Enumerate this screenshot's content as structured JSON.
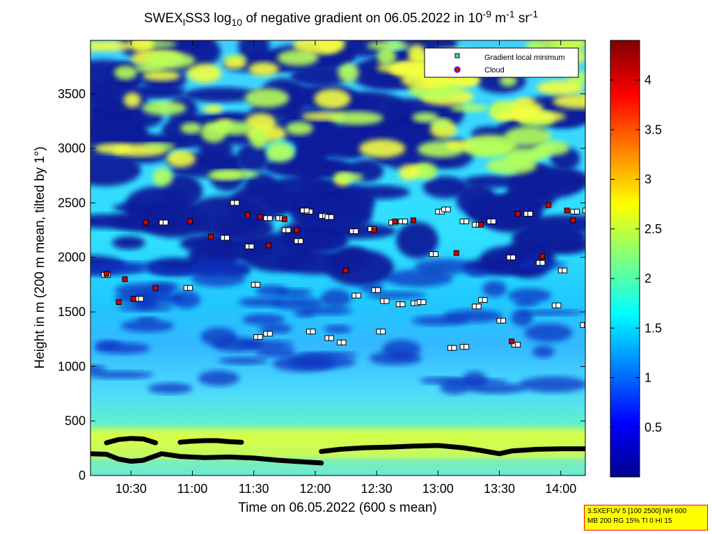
{
  "chart_data": {
    "type": "heatmap",
    "title_parts": [
      "SWEX",
      "l",
      "SS3 log",
      "10",
      " of negative gradient on 06.05.2022 in 10",
      "-9",
      " m",
      "-1",
      " sr",
      "-1"
    ],
    "xlabel": "Time on 06.05.2022 (600 s mean)",
    "ylabel": "Height in m (200 m mean, tilted by 1°)",
    "x_ticks": [
      "10:30",
      "11:00",
      "11:30",
      "12:00",
      "12:30",
      "13:00",
      "13:30",
      "14:00"
    ],
    "x_tick_hours": [
      10.5,
      11.0,
      11.5,
      12.0,
      12.5,
      13.0,
      13.5,
      14.0
    ],
    "xlim_hours": [
      10.17,
      14.2
    ],
    "y_ticks": [
      "0",
      "500",
      "1000",
      "1500",
      "2000",
      "2500",
      "3000",
      "3500"
    ],
    "y_tick_values": [
      0,
      500,
      1000,
      1500,
      2000,
      2500,
      3000,
      3500
    ],
    "ylim": [
      0,
      3990
    ],
    "colorbar_ticks": [
      "0.5",
      "1",
      "1.5",
      "2",
      "2.5",
      "3",
      "3.5",
      "4"
    ],
    "colorbar_tick_values": [
      0.5,
      1.0,
      1.5,
      2.0,
      2.5,
      3.0,
      3.5,
      4.0
    ],
    "colorbar_range": [
      0,
      4.4
    ],
    "legend": [
      {
        "label": "Gradient local minimum",
        "color": "#3fd0d0"
      },
      {
        "label": "Cloud",
        "color": "#e00000"
      }
    ],
    "legend_position": "top-right",
    "info_box": [
      "3.5XEFUV 5 [100 2500] NH 600",
      "MB 200 RG 15% TI 0 HI 15"
    ],
    "gradient_minimum_tracks": [
      {
        "t": [
          10.17,
          10.3,
          10.4,
          10.5,
          10.6,
          10.75,
          10.9,
          11.1,
          11.3,
          11.5,
          11.7,
          11.9,
          12.05
        ],
        "h": [
          200,
          195,
          150,
          130,
          140,
          200,
          175,
          165,
          170,
          160,
          140,
          125,
          115
        ]
      },
      {
        "t": [
          12.05,
          12.2,
          12.4,
          12.6,
          12.8,
          13.0,
          13.2,
          13.35,
          13.5,
          13.6,
          13.8,
          14.0,
          14.2
        ],
        "h": [
          220,
          240,
          255,
          260,
          270,
          275,
          255,
          230,
          200,
          225,
          240,
          245,
          245
        ]
      },
      {
        "t": [
          10.3,
          10.4,
          10.5,
          10.6,
          10.7
        ],
        "h": [
          300,
          330,
          340,
          335,
          300
        ]
      },
      {
        "t": [
          10.9,
          11.0,
          11.1,
          11.2,
          11.3,
          11.4
        ],
        "h": [
          305,
          315,
          320,
          320,
          310,
          305
        ]
      }
    ],
    "gradient_local_minimum_points": {
      "t": [
        10.28,
        10.55,
        10.75,
        10.95,
        11.25,
        11.33,
        11.45,
        11.5,
        11.52,
        11.6,
        11.75,
        11.85,
        11.93,
        11.95,
        12.05,
        12.1,
        12.2,
        12.32,
        12.45,
        12.48,
        12.52,
        12.55,
        12.62,
        12.7,
        12.8,
        12.95,
        13.0,
        13.05,
        13.2,
        13.3,
        13.35,
        13.42,
        13.5,
        13.58,
        13.62,
        13.72,
        13.82,
        13.95,
        14.0,
        14.1,
        14.18,
        12.1,
        11.6,
        11.7,
        11.9,
        13.1,
        13.2,
        13.3,
        12.3,
        14.2,
        12.68,
        12.85
      ],
      "h": [
        1840,
        1620,
        2320,
        1720,
        2180,
        2500,
        2100,
        1750,
        1270,
        1300,
        2250,
        2150,
        2420,
        1320,
        2380,
        1260,
        1220,
        1650,
        2260,
        1700,
        1320,
        1600,
        2320,
        2330,
        1580,
        2030,
        2420,
        2440,
        2330,
        1550,
        1610,
        2330,
        1420,
        2000,
        1200,
        2400,
        1950,
        1560,
        1880,
        2420,
        1380,
        2370,
        2360,
        2360,
        2430,
        1170,
        1180,
        2300,
        2240,
        2430,
        1570,
        1590
      ]
    },
    "cloud_points": {
      "t": [
        10.3,
        10.4,
        10.45,
        10.52,
        10.7,
        10.98,
        11.15,
        11.45,
        11.55,
        11.62,
        11.75,
        11.85,
        12.25,
        12.48,
        12.65,
        12.8,
        13.15,
        13.35,
        13.6,
        13.65,
        13.85,
        13.9,
        14.05,
        14.1,
        10.62
      ],
      "h": [
        1850,
        1590,
        1800,
        1620,
        1720,
        2330,
        2190,
        2390,
        2370,
        2110,
        2350,
        2250,
        1880,
        2250,
        2330,
        2340,
        2040,
        2300,
        1230,
        2400,
        2010,
        2480,
        2430,
        2340,
        2320
      ]
    }
  }
}
